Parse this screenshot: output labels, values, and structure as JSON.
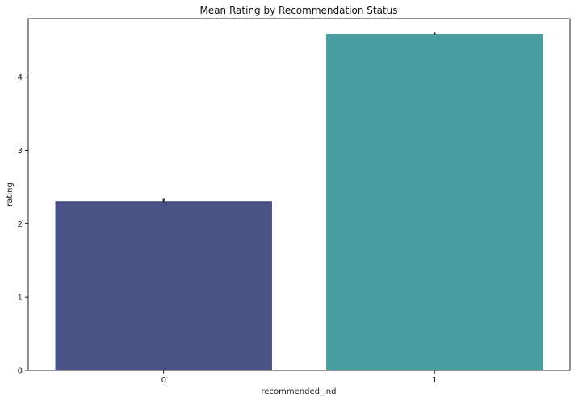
{
  "chart_data": {
    "type": "bar",
    "title": "Mean Rating by Recommendation Status",
    "xlabel": "recommended_ind",
    "ylabel": "rating",
    "categories": [
      "0",
      "1"
    ],
    "values": [
      2.31,
      4.59
    ],
    "error": [
      [
        2.28,
        2.34
      ],
      [
        4.58,
        4.61
      ]
    ],
    "colors": [
      "#4a5287",
      "#489e9e"
    ],
    "ylim": [
      0,
      4.8
    ],
    "yticks": [
      0,
      1,
      2,
      3,
      4
    ],
    "grid": false,
    "legend": "none"
  }
}
